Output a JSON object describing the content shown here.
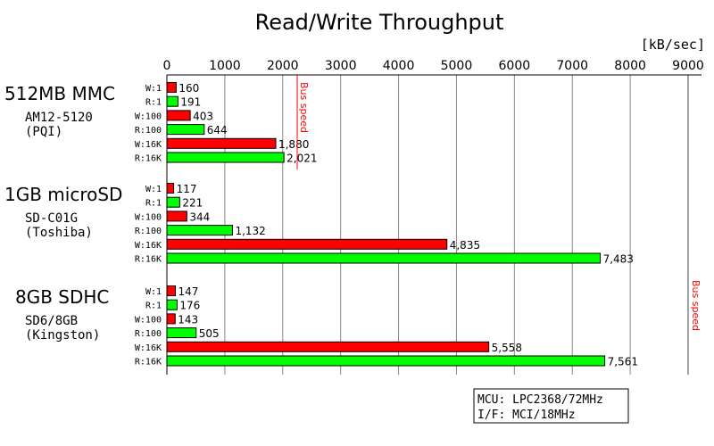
{
  "chart_data": {
    "type": "bar",
    "orientation": "horizontal",
    "title": "Read/Write Throughput",
    "unit_label": "[kB/sec]",
    "xlim": [
      0,
      9000
    ],
    "xticks": [
      "0",
      "1000",
      "2000",
      "3000",
      "4000",
      "5000",
      "6000",
      "7000",
      "8000",
      "9000"
    ],
    "grid": true,
    "colors": {
      "write": "#ff0000",
      "read": "#00ff00",
      "bus": "#ff0000"
    },
    "groups": [
      {
        "name": "512MB MMC",
        "model": "AM12-5120",
        "maker": "(PQI)",
        "categories": [
          "W:1",
          "R:1",
          "W:100",
          "R:100",
          "W:16K",
          "R:16K"
        ],
        "values": [
          160,
          191,
          403,
          644,
          1880,
          2021
        ],
        "labels": [
          "160",
          "191",
          "403",
          "644",
          "1,880",
          "2,021"
        ],
        "bus_speed": 2250,
        "bus_label": "Bus speed"
      },
      {
        "name": "1GB microSD",
        "model": "SD-C01G",
        "maker": "(Toshiba)",
        "categories": [
          "W:1",
          "R:1",
          "W:100",
          "R:100",
          "W:16K",
          "R:16K"
        ],
        "values": [
          117,
          221,
          344,
          1132,
          4835,
          7483
        ],
        "labels": [
          "117",
          "221",
          "344",
          "1,132",
          "4,835",
          "7,483"
        ]
      },
      {
        "name": "8GB SDHC",
        "model": "SD6/8GB",
        "maker": "(Kingston)",
        "categories": [
          "W:1",
          "R:1",
          "W:100",
          "R:100",
          "W:16K",
          "R:16K"
        ],
        "values": [
          147,
          176,
          143,
          505,
          5558,
          7561
        ],
        "labels": [
          "147",
          "176",
          "143",
          "505",
          "5,558",
          "7,561"
        ]
      }
    ],
    "sd_bus_speed": 9000,
    "sd_bus_label": "Bus speed",
    "note": [
      "MCU: LPC2368/72MHz",
      "I/F: MCI/18MHz"
    ]
  }
}
